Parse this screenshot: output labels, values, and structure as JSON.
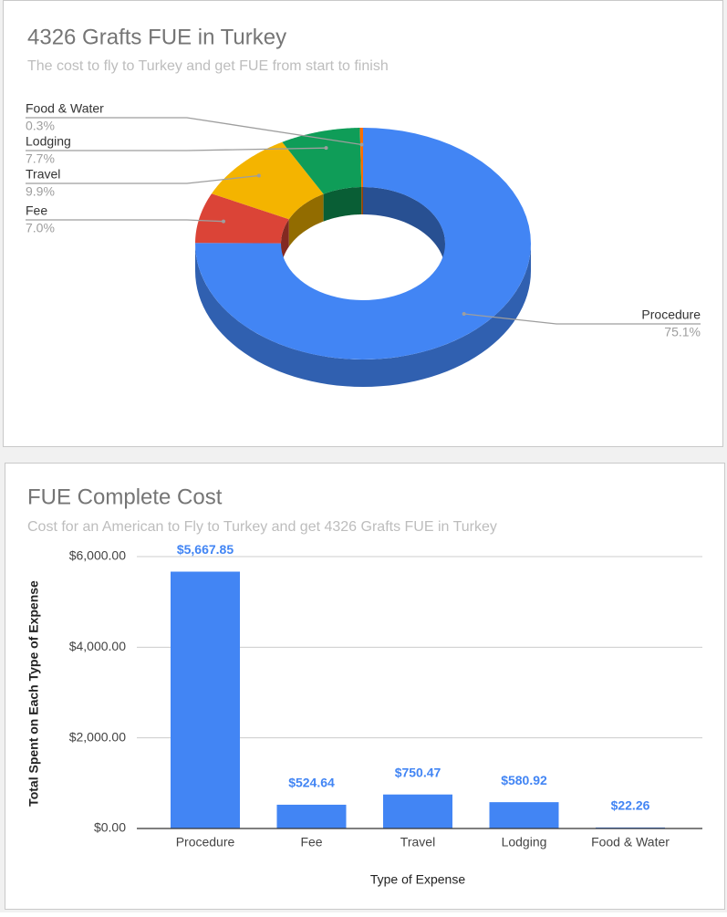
{
  "chart_data": [
    {
      "type": "pie",
      "title": "4326 Grafts FUE in Turkey",
      "subtitle": "The cost to fly to Turkey and get FUE from start to finish",
      "categories": [
        "Procedure",
        "Fee",
        "Travel",
        "Lodging",
        "Food & Water"
      ],
      "values": [
        75.1,
        7.0,
        9.9,
        7.7,
        0.3
      ],
      "value_labels": [
        "75.1%",
        "7.0%",
        "9.9%",
        "7.7%",
        "0.3%"
      ],
      "colors": [
        "#4285f4",
        "#db4437",
        "#f4b400",
        "#0f9d58",
        "#ff6d00"
      ]
    },
    {
      "type": "bar",
      "title": "FUE Complete Cost",
      "subtitle": "Cost for an American to Fly to Turkey and get 4326 Grafts FUE in Turkey",
      "xlabel": "Type of Expense",
      "ylabel": "Total Spent on Each Type of Expense",
      "categories": [
        "Procedure",
        "Fee",
        "Travel",
        "Lodging",
        "Food & Water"
      ],
      "values": [
        5667.85,
        524.64,
        750.47,
        580.92,
        22.26
      ],
      "value_labels": [
        "$5,667.85",
        "$524.64",
        "$750.47",
        "$580.92",
        "$22.26"
      ],
      "color": "#4285f4",
      "ylim": [
        0,
        6000
      ],
      "yticks": [
        {
          "value": 0,
          "label": "$0.00"
        },
        {
          "value": 2000,
          "label": "$2,000.00"
        },
        {
          "value": 4000,
          "label": "$4,000.00"
        },
        {
          "value": 6000,
          "label": "$6,000.00"
        }
      ],
      "grid": true
    }
  ]
}
